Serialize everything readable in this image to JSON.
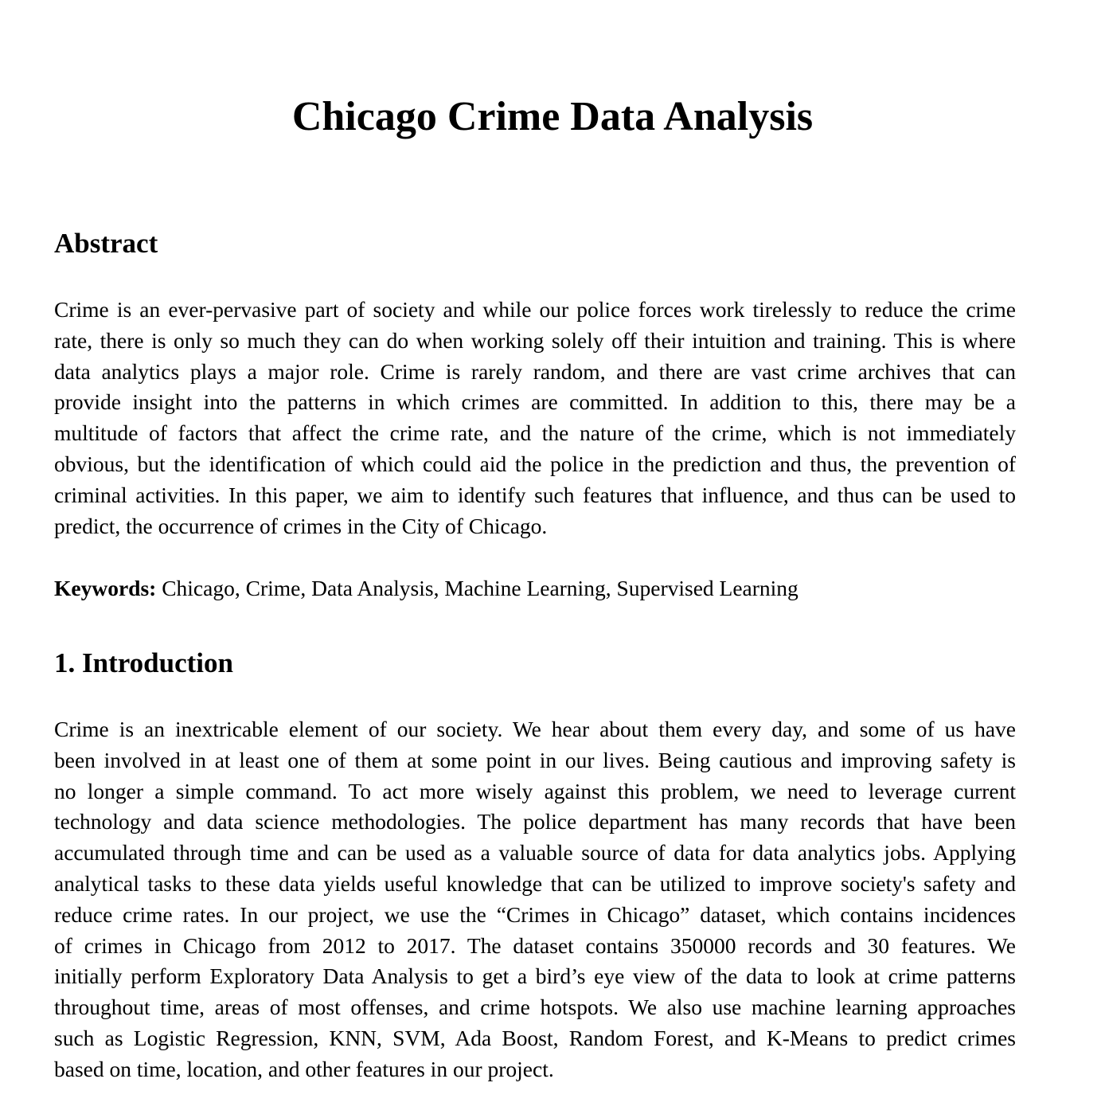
{
  "title": "Chicago Crime Data Analysis",
  "abstract": {
    "heading": "Abstract",
    "lines": [
      "Crime is an ever-pervasive part of society and while our police forces work tirelessly to reduce the crime",
      "rate, there is only so much they can do when working solely off their intuition and training. This is where",
      "data analytics plays a major role.  Crime is rarely random, and there are vast crime archives that can",
      "provide insight into the patterns in which crimes are committed. In addition to this, there may be a",
      "multitude of factors that affect the crime rate, and the nature of the crime, which is not immediately",
      "obvious, but the identification of which could aid the police in the prediction and thus, the prevention of",
      "criminal activities. In this paper, we aim to identify such features that influence, and thus can be used to",
      "predict, the occurrence of crimes in the City of Chicago."
    ]
  },
  "keywords": {
    "label": "Keywords:",
    "text": " Chicago, Crime, Data Analysis, Machine Learning, Supervised Learning"
  },
  "introduction": {
    "heading": "1. Introduction",
    "lines": [
      "Crime is an inextricable element of our society. We hear about them every day, and some of us have",
      "been involved in at least one of them at some point in our lives. Being cautious and improving safety is",
      "no longer a simple command. To act more wisely against this problem, we need to leverage current",
      "technology and data science methodologies. The police department has many records that have been",
      "accumulated through time and can be used as a valuable source of data for data analytics jobs. Applying",
      "analytical tasks to these data yields useful knowledge that can be utilized to improve society's safety and",
      "reduce crime rates. In our project, we use the “Crimes in Chicago” dataset, which contains incidences",
      "of crimes in Chicago from 2012 to 2017. The dataset contains 350000 records and 30 features. We",
      "initially perform Exploratory Data Analysis to get a bird’s eye view of the data to look at crime patterns",
      "throughout time, areas of most offenses, and crime hotspots. We also use machine learning approaches",
      "such as Logistic Regression, KNN, SVM, Ada Boost, Random Forest, and K-Means to predict crimes",
      "based on time, location, and other features in our project."
    ]
  }
}
